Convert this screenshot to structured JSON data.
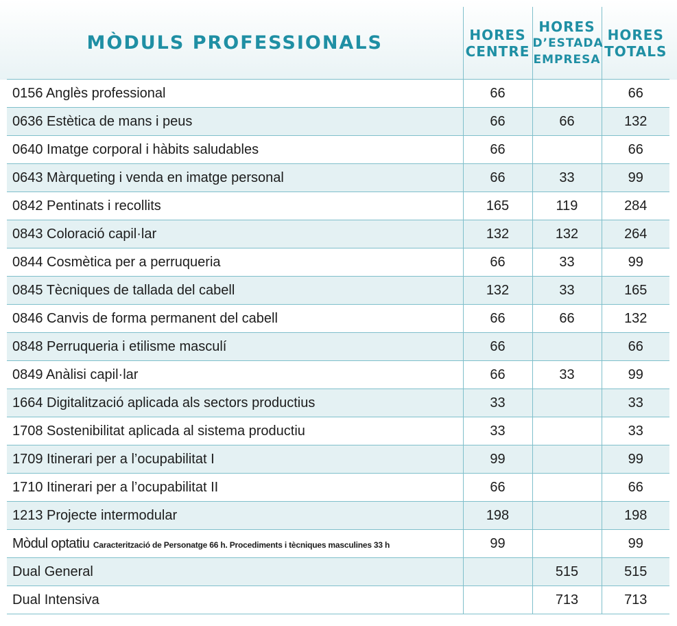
{
  "headers": {
    "name": "MÒDULS PROFESSIONALS",
    "centre": [
      "HORES",
      "CENTRE"
    ],
    "empresa": [
      "HORES",
      "D’ESTADA",
      "EMPRESA"
    ],
    "totals": [
      "HORES",
      "TOTALS"
    ]
  },
  "rows": [
    {
      "name": "0156 Anglès professional",
      "centre": "66",
      "empresa": "",
      "totals": "66"
    },
    {
      "name": "0636 Estètica de mans i peus",
      "centre": "66",
      "empresa": "66",
      "totals": "132"
    },
    {
      "name": "0640 Imatge corporal i hàbits  saludables",
      "centre": "66",
      "empresa": "",
      "totals": "66"
    },
    {
      "name": "0643 Màrqueting i venda en imatge personal",
      "centre": "66",
      "empresa": "33",
      "totals": "99"
    },
    {
      "name": "0842 Pentinats i recollits",
      "centre": "165",
      "empresa": "119",
      "totals": "284"
    },
    {
      "name": "0843 Coloració capil·lar",
      "centre": "132",
      "empresa": "132",
      "totals": "264"
    },
    {
      "name": "0844 Cosmètica per a perruqueria",
      "centre": "66",
      "empresa": "33",
      "totals": "99"
    },
    {
      "name": "0845 Tècniques de tallada del cabell",
      "centre": "132",
      "empresa": "33",
      "totals": "165"
    },
    {
      "name": "0846 Canvis de forma permanent del cabell",
      "centre": "66",
      "empresa": "66",
      "totals": "132"
    },
    {
      "name": "0848 Perruqueria i etilisme masculí",
      "centre": "66",
      "empresa": "",
      "totals": "66"
    },
    {
      "name": "0849 Anàlisi capil·lar",
      "centre": "66",
      "empresa": "33",
      "totals": "99"
    },
    {
      "name": "1664 Digitalització aplicada als sectors productius",
      "centre": "33",
      "empresa": "",
      "totals": "33"
    },
    {
      "name": "1708 Sostenibilitat aplicada al sistema productiu",
      "centre": "33",
      "empresa": "",
      "totals": "33"
    },
    {
      "name": "1709 Itinerari per a l’ocupabilitat I",
      "centre": "99",
      "empresa": "",
      "totals": "99"
    },
    {
      "name": "1710  Itinerari per a l’ocupabilitat II",
      "centre": "66",
      "empresa": "",
      "totals": "66"
    },
    {
      "name": "1213  Projecte intermodular",
      "centre": "198",
      "empresa": "",
      "totals": "198"
    },
    {
      "name": "Mòdul optatiu",
      "note": "Caracterització de Personatge 66 h. Procediments i tècniques masculines 33 h",
      "centre": "99",
      "empresa": "",
      "totals": "99"
    },
    {
      "name": "Dual General",
      "centre": "",
      "empresa": "515",
      "totals": "515"
    },
    {
      "name": "Dual Intensiva",
      "centre": "",
      "empresa": "713",
      "totals": "713"
    }
  ],
  "colors": {
    "header_text": "#1f8fa4",
    "row_shade": "#e4f1f3",
    "grid": "#7fbfcb"
  }
}
